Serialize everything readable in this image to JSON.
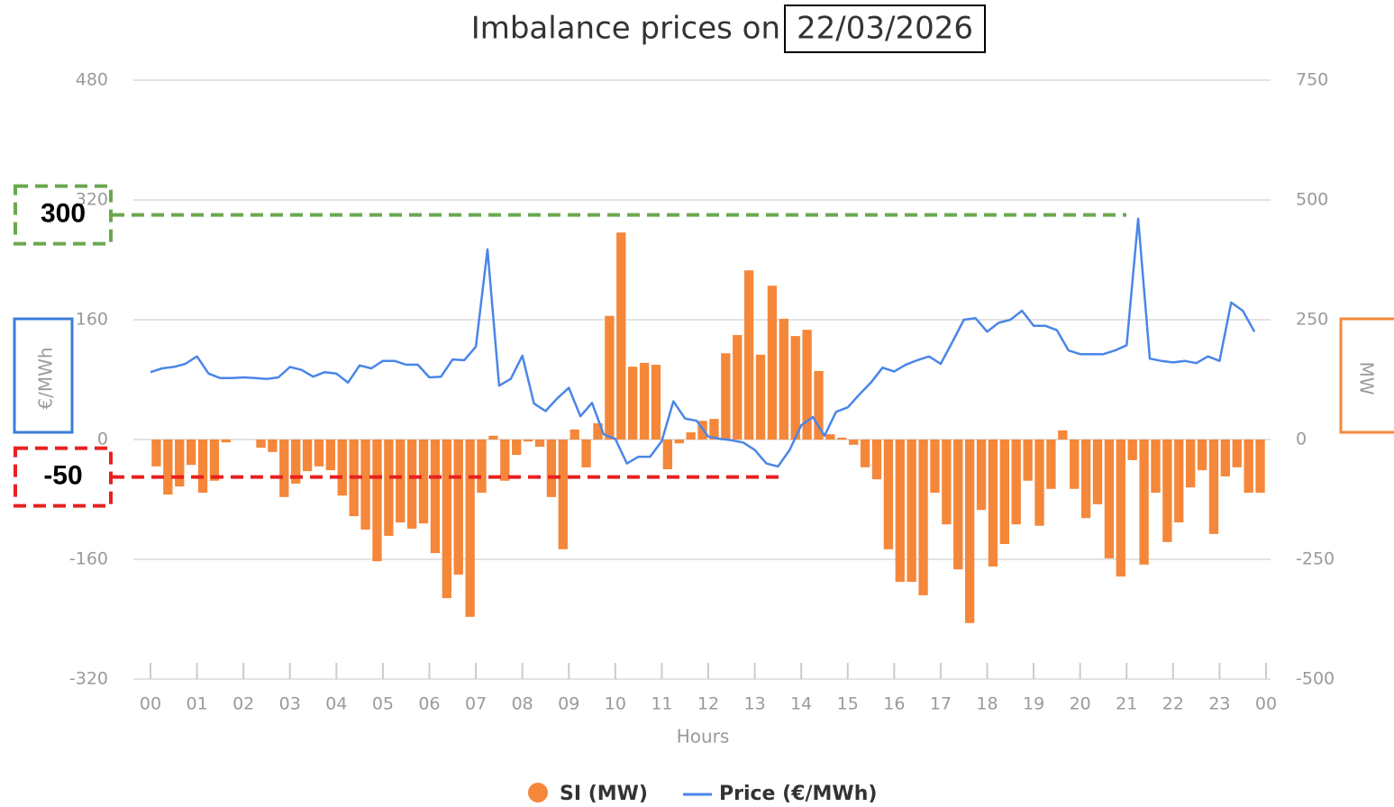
{
  "chart_data": {
    "type": "combo",
    "title": "Imbalance prices on",
    "title_date": "22/03/2026",
    "x_label": "Hours",
    "y_label": "€/MWh",
    "y2_label": "MW",
    "x": [
      0,
      0.25,
      0.5,
      0.75,
      1,
      1.25,
      1.5,
      1.75,
      2,
      2.25,
      2.5,
      2.75,
      3,
      3.25,
      3.5,
      3.75,
      4,
      4.25,
      4.5,
      4.75,
      5,
      5.25,
      5.5,
      5.75,
      6,
      6.25,
      6.5,
      6.75,
      7,
      7.25,
      7.5,
      7.75,
      8,
      8.25,
      8.5,
      8.75,
      9,
      9.25,
      9.5,
      9.75,
      10,
      10.25,
      10.5,
      10.75,
      11,
      11.25,
      11.5,
      11.75,
      12,
      12.25,
      12.5,
      12.75,
      13,
      13.25,
      13.5,
      13.75,
      14,
      14.25,
      14.5,
      14.75,
      15,
      15.25,
      15.5,
      15.75,
      16,
      16.25,
      16.5,
      16.75,
      17,
      17.25,
      17.5,
      17.75,
      18,
      18.25,
      18.5,
      18.75,
      19,
      19.25,
      19.5,
      19.75,
      20,
      20.25,
      20.5,
      20.75,
      21,
      21.25,
      21.5,
      21.75,
      22,
      22.25,
      22.5,
      22.75,
      23,
      23.25,
      23.5,
      23.75
    ],
    "xlim": [
      0,
      24
    ],
    "xticks": [
      {
        "value": 0,
        "label": "00"
      },
      {
        "value": 1,
        "label": "01"
      },
      {
        "value": 2,
        "label": "02"
      },
      {
        "value": 3,
        "label": "03"
      },
      {
        "value": 4,
        "label": "04"
      },
      {
        "value": 5,
        "label": "05"
      },
      {
        "value": 6,
        "label": "06"
      },
      {
        "value": 7,
        "label": "07"
      },
      {
        "value": 8,
        "label": "08"
      },
      {
        "value": 9,
        "label": "09"
      },
      {
        "value": 10,
        "label": "10"
      },
      {
        "value": 11,
        "label": "11"
      },
      {
        "value": 12,
        "label": "12"
      },
      {
        "value": 13,
        "label": "13"
      },
      {
        "value": 14,
        "label": "14"
      },
      {
        "value": 15,
        "label": "15"
      },
      {
        "value": 16,
        "label": "16"
      },
      {
        "value": 17,
        "label": "17"
      },
      {
        "value": 18,
        "label": "18"
      },
      {
        "value": 19,
        "label": "19"
      },
      {
        "value": 20,
        "label": "20"
      },
      {
        "value": 21,
        "label": "21"
      },
      {
        "value": 22,
        "label": "22"
      },
      {
        "value": 23,
        "label": "23"
      },
      {
        "value": 24,
        "label": "00"
      }
    ],
    "ylim": [
      -320,
      480
    ],
    "yticks": [
      -320,
      -160,
      0,
      160,
      320,
      480
    ],
    "y2lim": [
      -500,
      750
    ],
    "y2ticks": [
      -500,
      -250,
      0,
      250,
      500,
      750
    ],
    "grid": true,
    "series": [
      {
        "name": "SI (MW)",
        "type": "bar",
        "axis": "y2",
        "color": "#f5873a",
        "values": [
          -56,
          -115,
          -98,
          -53,
          -111,
          -86,
          -6,
          0,
          0,
          -17,
          -26,
          -120,
          -92,
          -66,
          -56,
          -64,
          -117,
          -160,
          -188,
          -254,
          -201,
          -173,
          -186,
          -175,
          -237,
          -331,
          -282,
          -370,
          -111,
          8,
          -86,
          -32,
          -4,
          -15,
          -120,
          -229,
          21,
          -58,
          34,
          258,
          432,
          152,
          160,
          156,
          -62,
          -8,
          15,
          39,
          43,
          180,
          218,
          353,
          177,
          321,
          252,
          216,
          229,
          143,
          11,
          4,
          -11,
          -58,
          -83,
          -229,
          -297,
          -297,
          -325,
          -111,
          -177,
          -271,
          -383,
          -147,
          -265,
          -218,
          -177,
          -86,
          -180,
          -103,
          19,
          -103,
          -164,
          -135,
          -248,
          -286,
          -43,
          -261,
          -111,
          -214,
          -173,
          -100,
          -64,
          -197,
          -77,
          -58,
          -111,
          -111
        ]
      },
      {
        "name": "Price (€/MWh)",
        "type": "line",
        "color": "#4a86e8",
        "values": [
          90,
          95,
          97,
          101,
          111,
          88,
          82,
          82,
          83,
          82,
          81,
          83,
          97,
          93,
          84,
          90,
          88,
          76,
          99,
          95,
          105,
          105,
          100,
          100,
          83,
          84,
          107,
          106,
          124,
          254,
          72,
          81,
          112,
          48,
          38,
          55,
          69,
          31,
          49,
          7,
          1,
          -32,
          -23,
          -23,
          -2,
          51,
          28,
          25,
          4,
          1,
          -1,
          -4,
          -14,
          -32,
          -36,
          -14,
          19,
          30,
          5,
          37,
          43,
          60,
          76,
          96,
          91,
          100,
          106,
          111,
          101,
          130,
          160,
          162,
          144,
          156,
          160,
          172,
          152,
          152,
          146,
          119,
          114,
          114,
          114,
          119,
          126,
          295,
          108,
          105,
          103,
          105,
          102,
          111,
          105,
          183,
          172,
          144
        ]
      }
    ],
    "reference_lines": [
      {
        "value": 300,
        "color": "#6aa84f"
      },
      {
        "value": -50,
        "color": "#e82020"
      }
    ]
  }
}
